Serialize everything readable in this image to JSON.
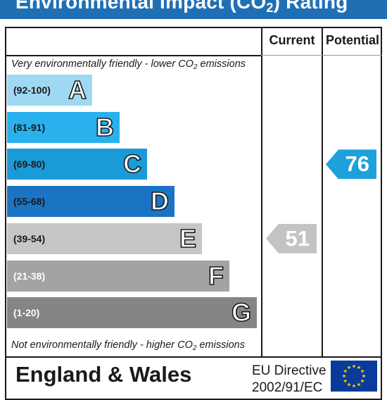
{
  "header": {
    "title_pre": "Environmental Impact (CO",
    "title_sub": "2",
    "title_post": ") Rating",
    "background": "#1f6fb5"
  },
  "columns": {
    "current": "Current",
    "potential": "Potential"
  },
  "notes": {
    "top_pre": "Very environmentally friendly - lower CO",
    "top_sub": "2",
    "top_post": " emissions",
    "bottom_pre": "Not environmentally friendly - higher CO",
    "bottom_sub": "2",
    "bottom_post": " emissions"
  },
  "chart_data": {
    "type": "bar",
    "bands": [
      {
        "range": "(92-100)",
        "letter": "A",
        "color": "#9fd8f3",
        "text_color": "#1a1a1a"
      },
      {
        "range": "(81-91)",
        "letter": "B",
        "color": "#29b1ee",
        "text_color": "#1a1a1a"
      },
      {
        "range": "(69-80)",
        "letter": "C",
        "color": "#199bd8",
        "text_color": "#1a1a1a"
      },
      {
        "range": "(55-68)",
        "letter": "D",
        "color": "#1a74c3",
        "text_color": "#1a1a1a"
      },
      {
        "range": "(39-54)",
        "letter": "E",
        "color": "#c6c6c6",
        "text_color": "#1a1a1a"
      },
      {
        "range": "(21-38)",
        "letter": "F",
        "color": "#a3a3a3",
        "text_color": "#ffffff"
      },
      {
        "range": "(1-20)",
        "letter": "G",
        "color": "#858585",
        "text_color": "#ffffff"
      }
    ],
    "current": {
      "value": "51",
      "band": "E",
      "color": "#c3c3c3"
    },
    "potential": {
      "value": "76",
      "band": "C",
      "color": "#1da1dc"
    }
  },
  "footer": {
    "region": "England & Wales",
    "directive_line1": "EU Directive",
    "directive_line2": "2002/91/EC",
    "flag_color": "#0a3b9b",
    "star_color": "#ffd600"
  }
}
